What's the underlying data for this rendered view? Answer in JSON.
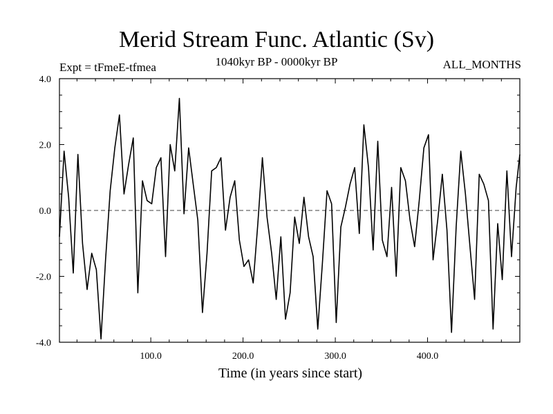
{
  "chart_data": {
    "type": "line",
    "title": "Merid Stream Func. Atlantic (Sv)",
    "subtitle": "1040kyr BP - 0000kyr BP",
    "expt_label": "Expt = tFmeE-tfmea",
    "months_label": "ALL_MONTHS",
    "xlabel": "Time (in years since start)",
    "ylabel": "",
    "xlim": [
      1,
      500
    ],
    "ylim": [
      -4.0,
      4.0
    ],
    "x_ticks": [
      100,
      200,
      300,
      400
    ],
    "x_tick_labels": [
      "100.0",
      "200.0",
      "300.0",
      "400.0"
    ],
    "y_ticks": [
      -4,
      -2,
      0,
      2,
      4
    ],
    "y_tick_labels": [
      "-4.0",
      "-2.0",
      "0.0",
      "2.0",
      "4.0"
    ],
    "reference_line_y": 0.0,
    "series": [
      {
        "name": "Merid Stream Func. Atlantic",
        "x_start": 1,
        "x_step": 5,
        "values": [
          -0.8,
          1.8,
          0.4,
          -1.9,
          1.7,
          -1.0,
          -2.4,
          -1.3,
          -1.8,
          -3.9,
          -1.5,
          0.6,
          1.9,
          2.9,
          0.5,
          1.4,
          2.2,
          -2.5,
          0.9,
          0.3,
          0.2,
          1.3,
          1.6,
          -1.4,
          2.0,
          1.2,
          3.4,
          -0.1,
          1.9,
          0.8,
          -0.3,
          -3.1,
          -1.3,
          1.2,
          1.3,
          1.6,
          -0.6,
          0.4,
          0.9,
          -0.9,
          -1.7,
          -1.5,
          -2.2,
          -0.4,
          1.6,
          -0.2,
          -1.3,
          -2.7,
          -0.8,
          -3.3,
          -2.5,
          -0.2,
          -1.0,
          0.4,
          -0.8,
          -1.4,
          -3.6,
          -1.6,
          0.6,
          0.2,
          -3.4,
          -0.5,
          0.1,
          0.8,
          1.3,
          -0.7,
          2.6,
          1.3,
          -1.2,
          2.1,
          -0.9,
          -1.4,
          0.7,
          -2.0,
          1.3,
          0.9,
          -0.3,
          -1.1,
          0.3,
          1.9,
          2.3,
          -1.5,
          -0.3,
          1.1,
          -0.6,
          -3.7,
          -0.5,
          1.8,
          0.5,
          -1.1,
          -2.7,
          1.1,
          0.8,
          0.3,
          -3.6,
          -0.4,
          -2.1,
          1.2,
          -1.4,
          0.7,
          1.7
        ]
      }
    ]
  }
}
